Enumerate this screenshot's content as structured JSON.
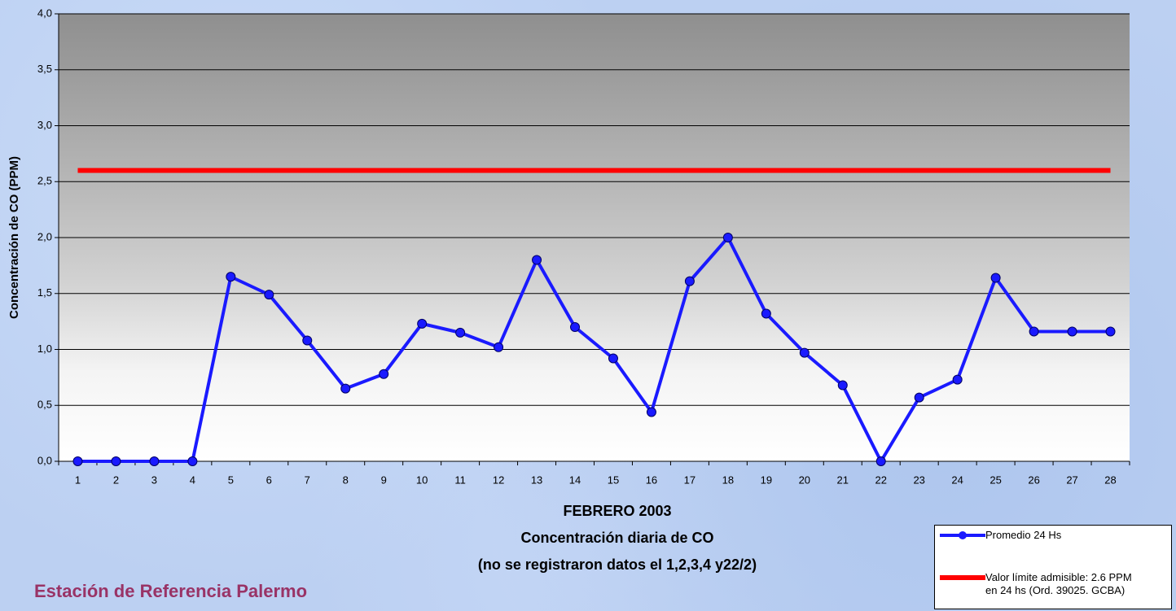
{
  "chart_data": {
    "type": "line",
    "title": "FEBRERO 2003",
    "subtitle": "Concentración diaria de CO",
    "note": "(no se registraron datos el 1,2,3,4 y22/2)",
    "footer": "Estación de Referencia Palermo",
    "y_label": "Concentración de CO (PPM)",
    "categories": [
      "1",
      "2",
      "3",
      "4",
      "5",
      "6",
      "7",
      "8",
      "9",
      "10",
      "11",
      "12",
      "13",
      "14",
      "15",
      "16",
      "17",
      "18",
      "19",
      "20",
      "21",
      "22",
      "23",
      "24",
      "25",
      "26",
      "27",
      "28"
    ],
    "series": [
      {
        "name": "Promedio 24 Hs",
        "color": "#1a1aff",
        "markers": true,
        "values": [
          0,
          0,
          0,
          0,
          1.65,
          1.49,
          1.08,
          0.65,
          0.78,
          1.23,
          1.15,
          1.02,
          1.8,
          1.2,
          0.92,
          0.44,
          1.61,
          2.0,
          1.32,
          0.97,
          0.68,
          0,
          0.57,
          0.73,
          1.64,
          1.16,
          1.16,
          1.16
        ]
      },
      {
        "name": "Valor límite admisible: 2.6 PPM en 24 hs (Ord. 39025. GCBA)",
        "color": "#ff0000",
        "markers": false,
        "values": [
          2.6,
          2.6,
          2.6,
          2.6,
          2.6,
          2.6,
          2.6,
          2.6,
          2.6,
          2.6,
          2.6,
          2.6,
          2.6,
          2.6,
          2.6,
          2.6,
          2.6,
          2.6,
          2.6,
          2.6,
          2.6,
          2.6,
          2.6,
          2.6,
          2.6,
          2.6,
          2.6,
          2.6
        ]
      }
    ],
    "ylim": [
      0,
      4
    ],
    "yticks": [
      {
        "value": 0,
        "label": "0,0"
      },
      {
        "value": 0.5,
        "label": "0,5"
      },
      {
        "value": 1,
        "label": "1,0"
      },
      {
        "value": 1.5,
        "label": "1,5"
      },
      {
        "value": 2,
        "label": "2,0"
      },
      {
        "value": 2.5,
        "label": "2,5"
      },
      {
        "value": 3,
        "label": "3,0"
      },
      {
        "value": 3.5,
        "label": "3,5"
      },
      {
        "value": 4,
        "label": "4,0"
      }
    ],
    "grid": true
  }
}
